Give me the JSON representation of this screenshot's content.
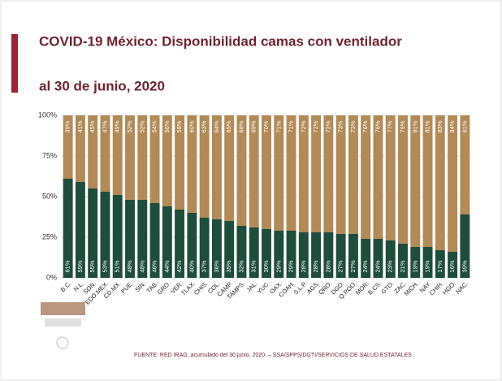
{
  "chart_data": {
    "type": "stacked_bar",
    "title": "COVID-19 México: Disponibilidad camas con ventilador",
    "subtitle": "al 30 de junio, 2020",
    "source": "FUENTE: RED IRAG, acumulado del 30 junio, 2020. –  SSA/SPPS/DGTI/SERVICIOS DE SALUD ESTATALES",
    "categories": [
      "B.C.",
      "N.L.",
      "SON.",
      "EDO.MEX.",
      "CD.MX.",
      "PUE.",
      "SIN.",
      "TAB.",
      "GRO.",
      "VER.",
      "TLAX.",
      "CHIS.",
      "COL.",
      "CAMP.",
      "TAMPS.",
      "JAL.",
      "YUC.",
      "OAX.",
      "COAH.",
      "S.L.P.",
      "AGS.",
      "QRO.",
      "DGO.",
      "Q.ROO.",
      "MOR.",
      "B.CS.",
      "GTO.",
      "ZAC.",
      "MICH.",
      "NAY.",
      "CHIH.",
      "HGO.",
      "NAC."
    ],
    "series": [
      {
        "color": "#1e4d3c",
        "values": [
          61,
          59,
          55,
          53,
          51,
          48,
          48,
          46,
          44,
          42,
          40,
          37,
          36,
          35,
          32,
          31,
          30,
          29,
          29,
          28,
          28,
          28,
          27,
          27,
          24,
          24,
          23,
          21,
          19,
          19,
          17,
          16,
          39
        ],
        "value_labels": [
          "61%",
          "59%",
          "55%",
          "53%",
          "51%",
          "48%",
          "48%",
          "46%",
          "44%",
          "42%",
          "40%",
          "37%",
          "36%",
          "35%",
          "32%",
          "31%",
          "30%",
          "29%",
          "29%",
          "28%",
          "28%",
          "28%",
          "27%",
          "27%",
          "24%",
          "24%",
          "23%",
          "21%",
          "19%",
          "19%",
          "17%",
          "16%",
          "39%"
        ]
      },
      {
        "color": "#b18a57",
        "values": [
          39,
          41,
          45,
          47,
          49,
          52,
          52,
          54,
          56,
          58,
          60,
          63,
          64,
          65,
          68,
          69,
          70,
          71,
          71,
          72,
          72,
          72,
          73,
          73,
          76,
          76,
          77,
          79,
          81,
          81,
          83,
          84,
          61
        ],
        "value_labels": [
          "39%",
          "41%",
          "45%",
          "47%",
          "49%",
          "52%",
          "52%",
          "54%",
          "56%",
          "58%",
          "60%",
          "63%",
          "64%",
          "65%",
          "68%",
          "69%",
          "70%",
          "71%",
          "71%",
          "72%",
          "72%",
          "72%",
          "73%",
          "73%",
          "76%",
          "76%",
          "77%",
          "79%",
          "81%",
          "81%",
          "83%",
          "84%",
          "61%"
        ]
      }
    ],
    "ylim": [
      0,
      100
    ],
    "yticks": [
      {
        "value": 0,
        "label": "0%"
      },
      {
        "value": 25,
        "label": "25%"
      },
      {
        "value": 50,
        "label": "50%"
      },
      {
        "value": 75,
        "label": "75%"
      },
      {
        "value": 100,
        "label": "100%"
      }
    ],
    "grid": true
  }
}
